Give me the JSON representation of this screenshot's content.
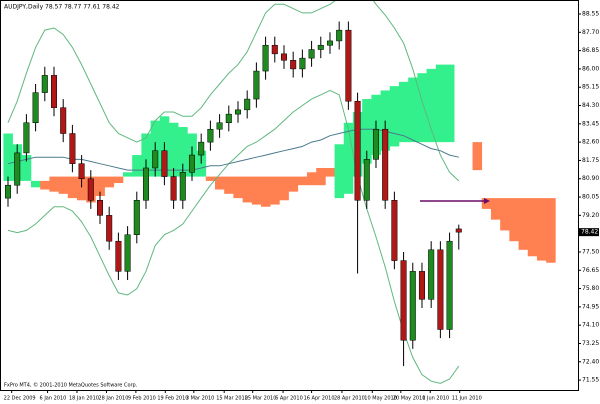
{
  "chart_data": {
    "type": "candlestick",
    "title": "AUDJPY,Daily  78.57 78.77 77.61 78.42",
    "footer": "FxPro MT4, © 2001-2010 MetaQuotes Software Corp.",
    "up_color": "#1f8a1f",
    "down_color": "#b01818",
    "open": [
      80.0,
      80.6,
      82.1,
      83.5,
      84.9,
      85.7,
      84.2,
      83.0,
      81.6,
      80.9,
      79.9,
      79.2,
      78.0,
      76.6,
      78.3,
      79.9,
      81.4,
      82.2,
      81.0,
      79.9,
      81.2,
      82.0,
      82.6,
      83.2,
      83.5,
      83.9,
      84.1,
      84.6,
      85.9,
      87.1,
      86.7,
      86.4,
      86.0,
      86.5,
      86.9,
      87.1,
      87.3,
      87.8,
      84.5,
      79.9,
      81.8,
      83.2,
      79.9,
      77.1,
      73.4,
      76.6,
      75.3,
      77.6,
      73.9,
      78.57
    ],
    "high": [
      81.0,
      82.5,
      83.9,
      85.3,
      86.1,
      86.1,
      84.6,
      83.4,
      82.0,
      81.3,
      80.3,
      79.6,
      78.4,
      78.7,
      80.3,
      81.8,
      82.6,
      82.6,
      81.4,
      81.6,
      82.4,
      83.0,
      83.6,
      83.9,
      84.3,
      84.5,
      85.0,
      86.3,
      87.5,
      87.5,
      87.1,
      86.8,
      86.9,
      87.3,
      87.5,
      87.7,
      88.2,
      88.2,
      84.9,
      82.2,
      83.6,
      83.6,
      80.3,
      77.5,
      77.0,
      77.0,
      78.0,
      78.0,
      78.4,
      78.77
    ],
    "low": [
      79.6,
      80.2,
      81.7,
      83.1,
      84.5,
      83.8,
      82.6,
      81.2,
      80.5,
      79.5,
      78.8,
      77.6,
      76.2,
      76.2,
      77.9,
      79.5,
      81.0,
      80.6,
      79.5,
      79.5,
      80.8,
      81.6,
      82.2,
      82.8,
      83.1,
      83.5,
      83.7,
      84.2,
      85.5,
      86.3,
      86.0,
      85.6,
      85.6,
      86.1,
      86.5,
      86.7,
      86.9,
      84.1,
      76.5,
      79.5,
      81.4,
      79.5,
      76.7,
      72.2,
      73.0,
      74.9,
      74.9,
      73.5,
      73.5,
      77.61
    ],
    "close": [
      80.6,
      82.1,
      83.5,
      84.9,
      85.7,
      84.2,
      83.0,
      81.6,
      80.9,
      79.9,
      79.2,
      78.0,
      76.6,
      78.3,
      79.9,
      81.4,
      82.2,
      81.0,
      79.9,
      81.2,
      82.0,
      82.6,
      83.2,
      83.5,
      83.9,
      84.1,
      84.6,
      85.9,
      87.1,
      86.7,
      86.4,
      86.0,
      86.5,
      86.9,
      87.1,
      87.3,
      87.8,
      84.5,
      79.9,
      81.8,
      83.2,
      79.9,
      77.1,
      73.4,
      76.6,
      75.3,
      77.6,
      73.9,
      78.0,
      78.42
    ],
    "upper_band": {
      "color": "#5fb87f",
      "values": [
        83.5,
        84.5,
        85.8,
        87.0,
        87.8,
        87.9,
        87.6,
        87.0,
        86.2,
        85.3,
        84.4,
        83.5,
        83.0,
        82.8,
        82.6,
        82.8,
        83.6,
        84.0,
        84.0,
        83.8,
        83.8,
        84.2,
        84.8,
        85.3,
        85.8,
        86.2,
        86.8,
        87.7,
        88.6,
        89.0,
        89.0,
        88.8,
        88.6,
        88.6,
        88.8,
        89.0,
        89.3,
        89.5,
        90.0,
        89.6,
        89.0,
        88.5,
        87.9,
        87.2,
        86.0,
        84.5,
        83.2,
        82.0,
        81.2,
        80.8
      ]
    },
    "lower_band": {
      "color": "#5fb87f",
      "values": [
        78.5,
        78.4,
        78.5,
        78.8,
        79.2,
        79.6,
        79.6,
        79.4,
        78.9,
        78.2,
        77.3,
        76.4,
        75.6,
        75.5,
        75.8,
        76.6,
        77.8,
        78.3,
        78.5,
        78.8,
        79.4,
        80.0,
        80.6,
        81.1,
        81.6,
        82.0,
        82.4,
        82.6,
        82.9,
        83.2,
        83.6,
        84.0,
        84.3,
        84.6,
        84.8,
        85.0,
        84.8,
        83.2,
        81.0,
        79.5,
        78.2,
        76.8,
        75.2,
        73.8,
        72.6,
        71.8,
        71.5,
        71.4,
        71.6,
        72.2
      ]
    },
    "moving_average": {
      "color": "#4a7a8c",
      "values": [
        81.6,
        81.7,
        81.8,
        81.9,
        81.9,
        81.9,
        81.9,
        81.8,
        81.8,
        81.7,
        81.6,
        81.5,
        81.4,
        81.3,
        81.3,
        81.3,
        81.3,
        81.3,
        81.3,
        81.3,
        81.3,
        81.4,
        81.5,
        81.5,
        81.6,
        81.7,
        81.8,
        81.9,
        82.0,
        82.1,
        82.2,
        82.3,
        82.4,
        82.6,
        82.7,
        82.9,
        83.0,
        83.1,
        83.2,
        83.2,
        83.2,
        83.1,
        83.0,
        82.9,
        82.7,
        82.5,
        82.3,
        82.2,
        82.0,
        81.9
      ]
    },
    "cloud_up_color": "#33f08c",
    "cloud_down_color": "#ff8050",
    "cloud_a": [
      83.0,
      82.5,
      82.0,
      80.8,
      80.4,
      80.3,
      80.2,
      80.0,
      79.9,
      79.8,
      80.1,
      80.5,
      80.7,
      81.2,
      82.0,
      83.0,
      83.6,
      83.8,
      83.5,
      83.3,
      83.0,
      82.2,
      80.8,
      80.4,
      80.2,
      80.0,
      79.8,
      79.7,
      79.6,
      79.7,
      79.9,
      80.3,
      80.6,
      80.6,
      80.6,
      81.0,
      82.5,
      83.5,
      84.0,
      84.6,
      84.8,
      85.0,
      85.2,
      85.4,
      85.6,
      85.8,
      86.0,
      86.2,
      86.2,
      null,
      null,
      81.3,
      79.5,
      79.0,
      78.5,
      78.0,
      77.6,
      77.3,
      77.1,
      77.0
    ],
    "cloud_b": [
      80.8,
      80.8,
      80.8,
      80.5,
      80.8,
      81.0,
      81.0,
      81.0,
      81.0,
      81.0,
      81.0,
      81.0,
      81.0,
      81.0,
      81.0,
      81.0,
      81.0,
      81.0,
      81.0,
      81.0,
      81.0,
      81.0,
      81.0,
      81.0,
      81.0,
      81.0,
      81.0,
      81.0,
      81.0,
      81.0,
      81.0,
      81.0,
      81.0,
      81.2,
      81.4,
      81.4,
      80.0,
      80.2,
      81.0,
      81.6,
      82.0,
      82.2,
      82.4,
      82.6,
      82.6,
      82.6,
      82.6,
      82.6,
      82.6,
      null,
      null,
      82.6,
      80.0,
      80.0,
      80.0,
      80.0,
      80.0,
      80.0,
      80.0,
      80.0
    ],
    "xlim": [
      -0.87,
      61.96
    ],
    "xticks": [
      {
        "value": 0.4,
        "label": "22 Dec 2009"
      },
      {
        "value": 4.3,
        "label": "6 Jan 2010"
      },
      {
        "value": 7.5,
        "label": "18 Jan 2010"
      },
      {
        "value": 10.7,
        "label": "28 Jan 2010"
      },
      {
        "value": 13.9,
        "label": "9 Feb 2010"
      },
      {
        "value": 17.1,
        "label": "19 Feb 2010"
      },
      {
        "value": 20.2,
        "label": "3 Mar 2010"
      },
      {
        "value": 23.5,
        "label": "15 Mar 2010"
      },
      {
        "value": 26.6,
        "label": "25 Mar 2010"
      },
      {
        "value": 29.9,
        "label": "6 Apr 2010"
      },
      {
        "value": 33.0,
        "label": "16 Apr 2010"
      },
      {
        "value": 36.3,
        "label": "28 Apr 2010"
      },
      {
        "value": 39.6,
        "label": "10 May 2010"
      },
      {
        "value": 42.7,
        "label": "20 May 2010"
      },
      {
        "value": 45.9,
        "label": "1 Jun 2010"
      },
      {
        "value": 49.1,
        "label": "11 Jun 2010"
      }
    ],
    "ylim": [
      71.09,
      89.2
    ],
    "yticks": [
      71.55,
      {
        "value": 72.4,
        "label": "72.40"
      },
      73.25,
      {
        "value": 74.1,
        "label": "74.10"
      },
      74.95,
      {
        "value": 75.8,
        "label": "75.80"
      },
      76.65,
      {
        "value": 77.5,
        "label": "77.50"
      },
      78.35,
      {
        "value": 79.2,
        "label": "79.20"
      },
      80.05,
      {
        "value": 80.9,
        "label": "80.90"
      },
      81.75,
      {
        "value": 82.6,
        "label": "82.60"
      },
      83.45,
      {
        "value": 84.3,
        "label": "84.30"
      },
      85.15,
      {
        "value": 86.0,
        "label": "86.00"
      },
      86.85,
      {
        "value": 87.7,
        "label": "87.70"
      },
      88.55
    ]
  }
}
